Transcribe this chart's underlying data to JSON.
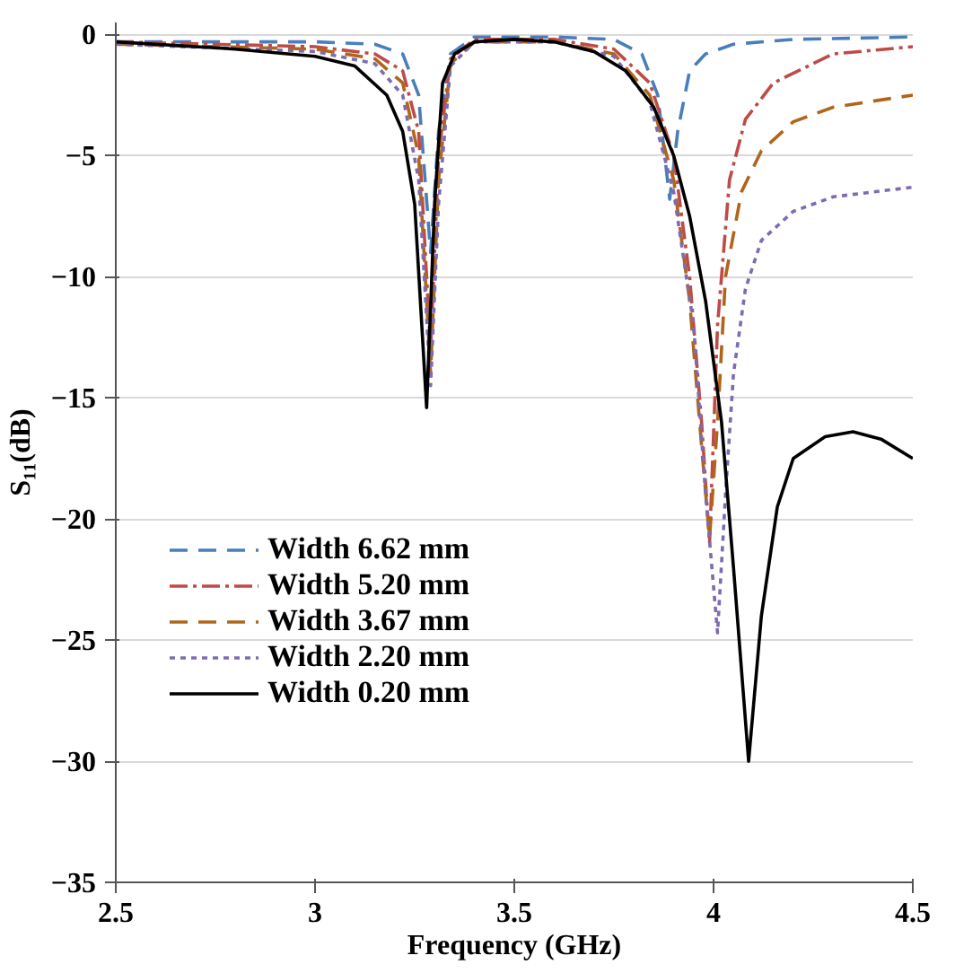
{
  "chart_data": {
    "type": "line",
    "xlabel": "Frequency (GHz)",
    "ylabel": "S₁₁(dB)",
    "xlim": [
      2.5,
      4.5
    ],
    "xticks": [
      2.5,
      3,
      3.5,
      4,
      4.5
    ],
    "ylim": [
      -35,
      0.5
    ],
    "yticks": [
      -35,
      -30,
      -25,
      -20,
      -15,
      -10,
      -5,
      0
    ],
    "grid": "y",
    "legend": "left",
    "marker": "none",
    "series": [
      {
        "name": "Width 6.62 mm",
        "color": "#4a7ebb",
        "line_style": "dashed",
        "x": [
          2.5,
          3.0,
          3.15,
          3.22,
          3.26,
          3.29,
          3.31,
          3.34,
          3.4,
          3.6,
          3.75,
          3.82,
          3.86,
          3.89,
          3.91,
          3.94,
          3.98,
          4.05,
          4.2,
          4.5
        ],
        "values": [
          -0.3,
          -0.3,
          -0.4,
          -0.8,
          -2.5,
          -9,
          -4,
          -0.8,
          -0.1,
          -0.1,
          -0.2,
          -0.8,
          -2.5,
          -6.8,
          -4,
          -1.5,
          -0.8,
          -0.4,
          -0.2,
          -0.1
        ]
      },
      {
        "name": "Width 5.20 mm",
        "color": "#be4b48",
        "line_style": "dashdot",
        "x": [
          2.5,
          3.0,
          3.15,
          3.22,
          3.26,
          3.29,
          3.31,
          3.34,
          3.4,
          3.6,
          3.75,
          3.84,
          3.9,
          3.94,
          3.97,
          3.99,
          4.01,
          4.04,
          4.08,
          4.15,
          4.3,
          4.5
        ],
        "values": [
          -0.3,
          -0.5,
          -0.8,
          -1.5,
          -4,
          -13,
          -5,
          -1,
          -0.2,
          -0.2,
          -0.6,
          -2,
          -5,
          -10,
          -16,
          -21,
          -12,
          -6,
          -3.5,
          -2,
          -0.8,
          -0.5
        ]
      },
      {
        "name": "Width 3.67 mm",
        "color": "#b0651a",
        "line_style": "dashed",
        "x": [
          2.5,
          3.0,
          3.15,
          3.22,
          3.26,
          3.29,
          3.31,
          3.34,
          3.4,
          3.6,
          3.75,
          3.84,
          3.9,
          3.94,
          3.97,
          3.99,
          4.01,
          4.03,
          4.07,
          4.12,
          4.2,
          4.3,
          4.5
        ],
        "values": [
          -0.4,
          -0.6,
          -1.0,
          -2,
          -5,
          -14,
          -6,
          -1.2,
          -0.3,
          -0.3,
          -0.8,
          -2.5,
          -6,
          -11,
          -17,
          -20.8,
          -16,
          -10,
          -6.5,
          -4.8,
          -3.6,
          -3,
          -2.5
        ]
      },
      {
        "name": "Width 2.20 mm",
        "color": "#7e6bb0",
        "line_style": "dotted",
        "x": [
          2.5,
          3.0,
          3.15,
          3.22,
          3.26,
          3.29,
          3.31,
          3.34,
          3.4,
          3.6,
          3.75,
          3.84,
          3.9,
          3.95,
          3.98,
          4.01,
          4.03,
          4.05,
          4.08,
          4.12,
          4.2,
          4.3,
          4.5
        ],
        "values": [
          -0.4,
          -0.7,
          -1.2,
          -2.5,
          -6,
          -14.5,
          -7,
          -1.3,
          -0.3,
          -0.3,
          -0.9,
          -2.8,
          -6.5,
          -12,
          -19,
          -24.7,
          -19,
          -14,
          -10.5,
          -8.5,
          -7.3,
          -6.7,
          -6.3
        ]
      },
      {
        "name": "Width 0.20 mm",
        "color": "#000000",
        "line_style": "solid",
        "x": [
          2.5,
          2.8,
          3.0,
          3.1,
          3.18,
          3.22,
          3.25,
          3.28,
          3.3,
          3.32,
          3.35,
          3.4,
          3.5,
          3.6,
          3.7,
          3.78,
          3.85,
          3.9,
          3.94,
          3.98,
          4.02,
          4.05,
          4.088,
          4.12,
          4.16,
          4.2,
          4.28,
          4.35,
          4.42,
          4.5
        ],
        "values": [
          -0.3,
          -0.6,
          -0.9,
          -1.3,
          -2.5,
          -4,
          -7,
          -15.4,
          -7,
          -2,
          -0.8,
          -0.3,
          -0.2,
          -0.3,
          -0.7,
          -1.5,
          -3,
          -5,
          -7.5,
          -11,
          -16,
          -22,
          -30,
          -24,
          -19.5,
          -17.5,
          -16.6,
          -16.4,
          -16.7,
          -17.5
        ]
      }
    ]
  }
}
